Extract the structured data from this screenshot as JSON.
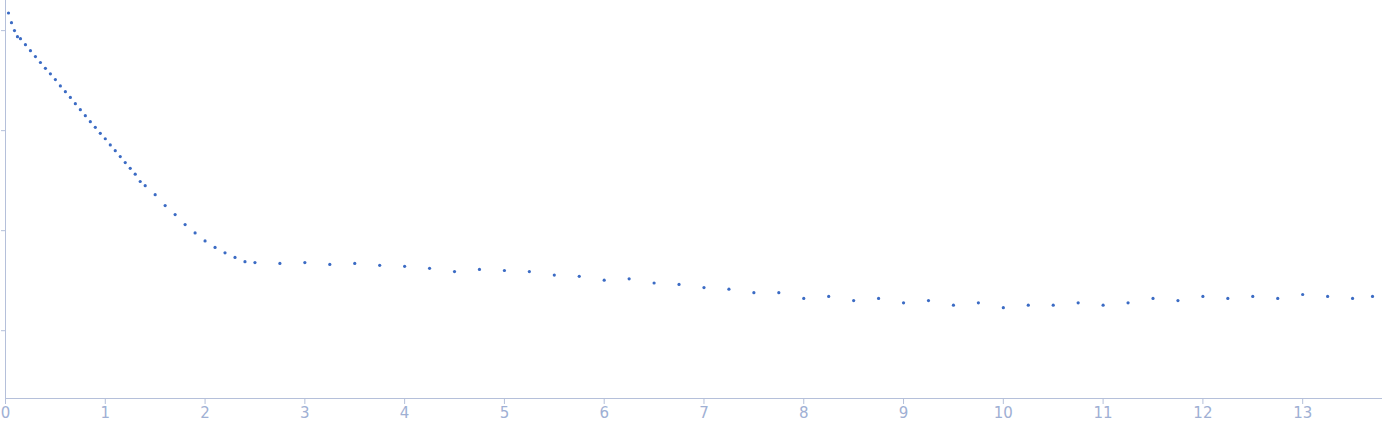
{
  "chart_data": {
    "type": "scatter",
    "log": "y",
    "tick_labels": "x",
    "grid": false,
    "marker": "circle",
    "color": "#3b6bc4",
    "xlim": [
      0,
      13.8
    ],
    "xticks": [
      0,
      1,
      2,
      3,
      4,
      5,
      6,
      7,
      8,
      9,
      10,
      11,
      12,
      13
    ],
    "ylim": [
      0.00021,
      2
    ],
    "yticks": [
      0.001,
      0.01,
      0.1,
      1
    ],
    "x": [
      0.03,
      0.06,
      0.09,
      0.12,
      0.15,
      0.2,
      0.25,
      0.3,
      0.35,
      0.4,
      0.45,
      0.5,
      0.55,
      0.6,
      0.65,
      0.7,
      0.75,
      0.8,
      0.85,
      0.9,
      0.95,
      1.0,
      1.05,
      1.1,
      1.15,
      1.2,
      1.25,
      1.3,
      1.35,
      1.4,
      1.5,
      1.6,
      1.7,
      1.8,
      1.9,
      2.0,
      2.1,
      2.2,
      2.3,
      2.4,
      2.5,
      2.75,
      3.0,
      3.25,
      3.5,
      3.75,
      4.0,
      4.25,
      4.5,
      4.75,
      5.0,
      5.25,
      5.5,
      5.75,
      6.0,
      6.25,
      6.5,
      6.75,
      7.0,
      7.25,
      7.5,
      7.75,
      8.0,
      8.25,
      8.5,
      8.75,
      9.0,
      9.25,
      9.5,
      9.75,
      10.0,
      10.25,
      10.5,
      10.75,
      11.0,
      11.25,
      11.5,
      11.75,
      12.0,
      12.25,
      12.5,
      12.75,
      13.0,
      13.25,
      13.5,
      13.7
    ],
    "values": [
      1.5,
      1.2,
      1.0,
      0.87,
      0.83,
      0.724,
      0.63,
      0.55,
      0.48,
      0.42,
      0.37,
      0.324,
      0.28,
      0.245,
      0.215,
      0.186,
      0.162,
      0.141,
      0.123,
      0.108,
      0.094,
      0.083,
      0.072,
      0.063,
      0.055,
      0.048,
      0.042,
      0.0367,
      0.031,
      0.0282,
      0.0229,
      0.0178,
      0.0145,
      0.0115,
      0.0095,
      0.0079,
      0.0068,
      0.006,
      0.0054,
      0.0049,
      0.0048,
      0.0047,
      0.0048,
      0.0046,
      0.0047,
      0.0045,
      0.0044,
      0.0042,
      0.0039,
      0.0041,
      0.004,
      0.0039,
      0.0036,
      0.0035,
      0.0032,
      0.0033,
      0.003,
      0.0029,
      0.0027,
      0.0026,
      0.0024,
      0.0024,
      0.0021,
      0.0022,
      0.002,
      0.0021,
      0.0019,
      0.002,
      0.0018,
      0.0019,
      0.0017,
      0.0018,
      0.0018,
      0.0019,
      0.0018,
      0.0019,
      0.0021,
      0.002,
      0.0022,
      0.0021,
      0.0022,
      0.0021,
      0.0023,
      0.0022,
      0.0021,
      0.0022
    ]
  }
}
